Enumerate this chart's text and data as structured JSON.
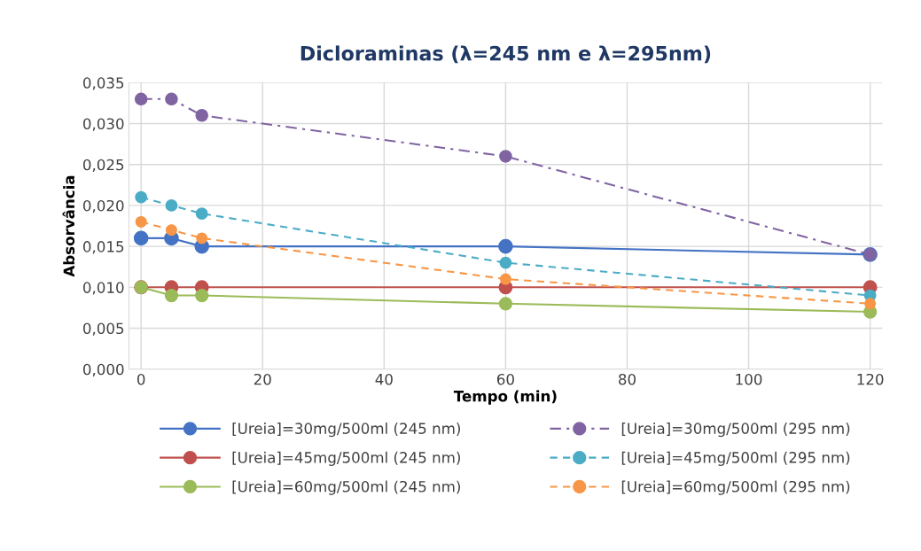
{
  "chart_data": {
    "type": "line",
    "title": "Dicloraminas (λ=245 nm e λ=295nm)",
    "xlabel": "Tempo (min)",
    "ylabel": "Absorvância",
    "x": [
      0,
      5,
      10,
      60,
      120
    ],
    "series": [
      {
        "name": "[Ureia]=30mg/500ml (245 nm)",
        "color": "#4472c4",
        "line_style": "solid",
        "values": [
          0.016,
          0.016,
          0.015,
          0.015,
          0.014
        ]
      },
      {
        "name": "[Ureia]=45mg/500ml (245 nm)",
        "color": "#c0504d",
        "line_style": "solid",
        "values": [
          0.01,
          0.01,
          0.01,
          0.01,
          0.01
        ]
      },
      {
        "name": "[Ureia]=60mg/500ml (245 nm)",
        "color": "#9bbb59",
        "line_style": "solid",
        "values": [
          0.01,
          0.009,
          0.009,
          0.008,
          0.007
        ]
      },
      {
        "name": "[Ureia]=30mg/500ml (295 nm)",
        "color": "#8064a2",
        "line_style": "dashdot",
        "values": [
          0.033,
          0.033,
          0.031,
          0.026,
          0.014
        ]
      },
      {
        "name": "[Ureia]=45mg/500ml (295 nm)",
        "color": "#4bacc6",
        "line_style": "dashed",
        "values": [
          0.021,
          0.02,
          0.019,
          0.013,
          0.009
        ]
      },
      {
        "name": "[Ureia]=60mg/500ml (295 nm)",
        "color": "#f79646",
        "line_style": "dashed",
        "values": [
          0.018,
          0.017,
          0.016,
          0.011,
          0.008
        ]
      }
    ],
    "xlim": [
      -2,
      122
    ],
    "xticks": [
      0,
      20,
      40,
      60,
      80,
      100,
      120
    ],
    "ylim": [
      0,
      0.035
    ],
    "yticks": [
      {
        "value": 0,
        "label": "0,000"
      },
      {
        "value": 0.005,
        "label": "0,005"
      },
      {
        "value": 0.01,
        "label": "0,010"
      },
      {
        "value": 0.015,
        "label": "0,015"
      },
      {
        "value": 0.02,
        "label": "0,020"
      },
      {
        "value": 0.025,
        "label": "0,025"
      },
      {
        "value": 0.03,
        "label": "0,030"
      },
      {
        "value": 0.035,
        "label": "0,035"
      }
    ],
    "grid": true,
    "legend": "bottom",
    "marker": "circle"
  }
}
